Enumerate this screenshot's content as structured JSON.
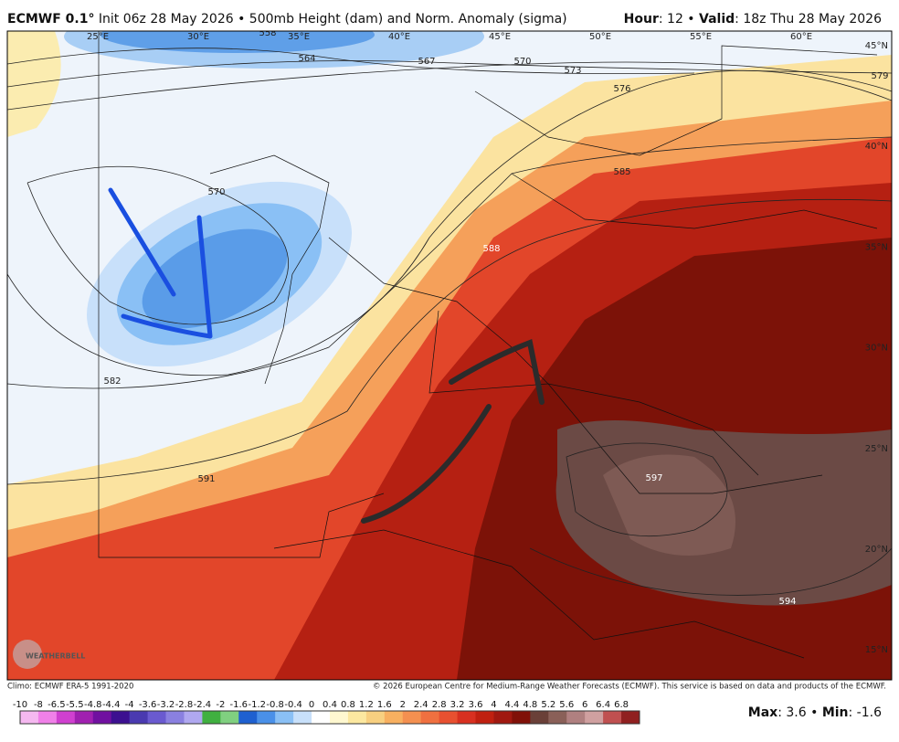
{
  "header": {
    "left": {
      "model": "ECMWF 0.1°",
      "rest": "Init 06z 28 May 2026 • 500mb Height (dam) and Norm. Anomaly (sigma)"
    },
    "right": {
      "hour_label": "Hour",
      "hour_value": ": 12 •",
      "valid_label": "Valid",
      "valid_value": ": 18z Thu 28 May 2026"
    }
  },
  "map": {
    "longitudes": [
      "25°E",
      "30°E",
      "35°E",
      "40°E",
      "45°E",
      "50°E",
      "55°E",
      "60°E"
    ],
    "latitudes": [
      "45°N",
      "40°N",
      "35°N",
      "30°N",
      "25°N",
      "20°N",
      "15°N"
    ],
    "contour_labels": [
      "558",
      "564",
      "567",
      "570",
      "573",
      "576",
      "579",
      "585",
      "588",
      "570",
      "582",
      "591",
      "597",
      "594"
    ],
    "logo": "WEATHERBELL"
  },
  "footer": {
    "climo": "Climo: ECMWF ERA-5 1991-2020",
    "copyright": "© 2026 European Centre for Medium-Range Weather Forecasts (ECMWF). This service is based on data and products of the ECMWF."
  },
  "colorbar": {
    "labels": [
      -10,
      -8,
      -6.5,
      -5.5,
      -4.8,
      -4.4,
      -4,
      -3.6,
      -3.2,
      -2.8,
      -2.4,
      -2,
      -1.6,
      -1.2,
      -0.8,
      -0.4,
      0,
      0.4,
      0.8,
      1.2,
      1.6,
      2,
      2.4,
      2.8,
      3.2,
      3.6,
      4,
      4.4,
      4.8,
      5.2,
      5.6,
      6,
      6.4,
      6.8
    ],
    "colors": [
      "#f5b8f0",
      "#f080e8",
      "#d040d0",
      "#a020b0",
      "#7010a0",
      "#3c1090",
      "#4a3ab0",
      "#6a5ad0",
      "#8a80e0",
      "#b0a8f0",
      "#40b040",
      "#80d080",
      "#1e60d0",
      "#4a90e8",
      "#8ac0f5",
      "#c8e0fa",
      "#ffffff",
      "#fff8d0",
      "#fce8a0",
      "#f8d080",
      "#f8b060",
      "#f49050",
      "#f07040",
      "#e85030",
      "#d83020",
      "#c02010",
      "#a01810",
      "#801008",
      "#6a4038",
      "#8a6058",
      "#b08080",
      "#d0a0a0",
      "#c05050",
      "#902020"
    ]
  },
  "stats": {
    "max_label": "Max",
    "max_value": ": 3.6 •",
    "min_label": "Min",
    "min_value": ": -1.6"
  }
}
